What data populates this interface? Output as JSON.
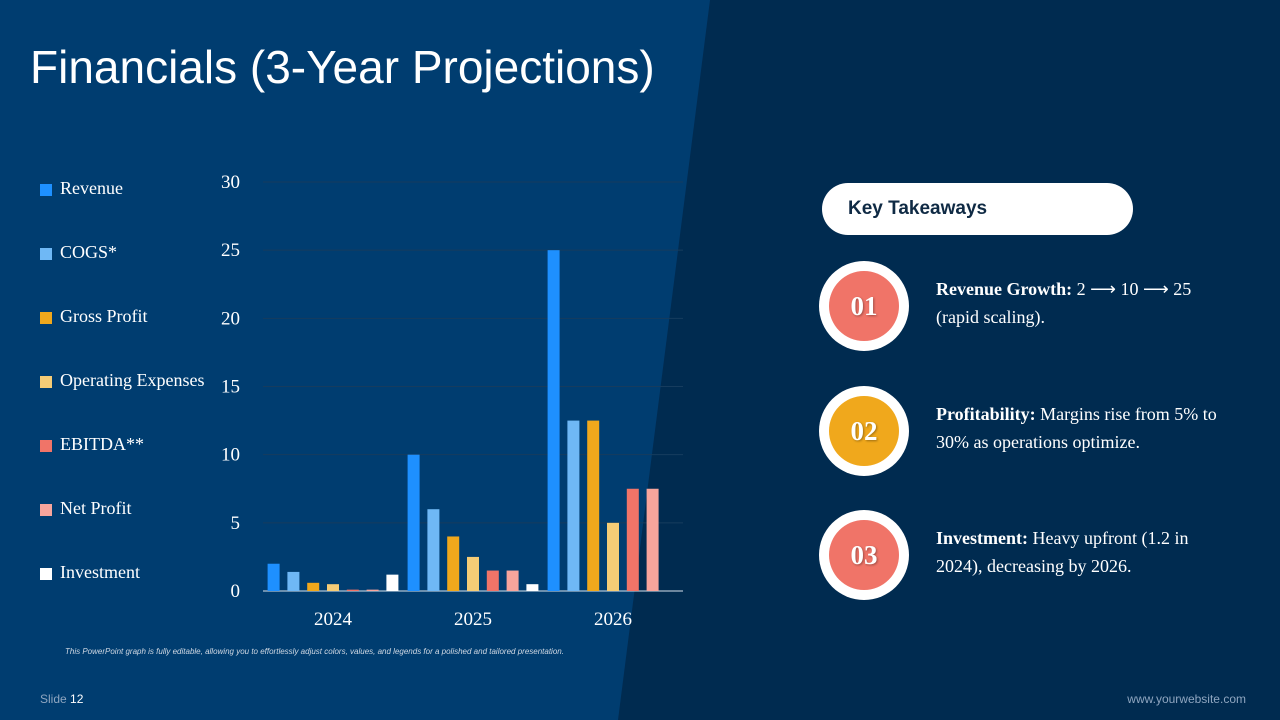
{
  "title": "Financials (3-Year Projections)",
  "chart_data": {
    "type": "bar",
    "categories": [
      "2024",
      "2025",
      "2026"
    ],
    "series": [
      {
        "name": "Revenue",
        "color": "#1e90ff",
        "values": [
          2,
          10,
          25
        ]
      },
      {
        "name": "COGS*",
        "color": "#6fb8f5",
        "values": [
          1.4,
          6,
          12.5
        ]
      },
      {
        "name": "Gross Profit",
        "color": "#f0a81c",
        "values": [
          0.6,
          4,
          12.5
        ]
      },
      {
        "name": "Operating Expenses",
        "color": "#f5cc76",
        "values": [
          0.5,
          2.5,
          5
        ]
      },
      {
        "name": "EBITDA**",
        "color": "#f07468",
        "values": [
          0.1,
          1.5,
          7.5
        ]
      },
      {
        "name": "Net Profit",
        "color": "#f7a59c",
        "values": [
          0.1,
          1.5,
          7.5
        ]
      },
      {
        "name": "Investment",
        "color": "#ffffff",
        "values": [
          1.2,
          0.5,
          0
        ]
      }
    ],
    "y_ticks": [
      "0",
      "5",
      "10",
      "15",
      "20",
      "25",
      "30"
    ],
    "ylim": [
      0,
      30
    ],
    "grid": true,
    "legend_position": "left"
  },
  "note": "This PowerPoint graph is fully editable, allowing you to effortlessly adjust colors, values, and legends for a polished and tailored presentation.",
  "footer": {
    "slide_label": "Slide",
    "slide_number": "12",
    "website": "www.yourwebsite.com"
  },
  "takeaways": {
    "header": "Key Takeaways",
    "items": [
      {
        "number": "01",
        "color": "#f07468",
        "heading": "Revenue Growth:",
        "text": " 2 ⟶ 10 ⟶ 25 (rapid scaling)."
      },
      {
        "number": "02",
        "color": "#f0a81c",
        "heading": "Profitability:",
        "text": " Margins rise from 5% to 30% as operations optimize."
      },
      {
        "number": "03",
        "color": "#f07468",
        "heading": "Investment:",
        "text": " Heavy upfront (1.2 in 2024), decreasing by 2026."
      }
    ]
  }
}
